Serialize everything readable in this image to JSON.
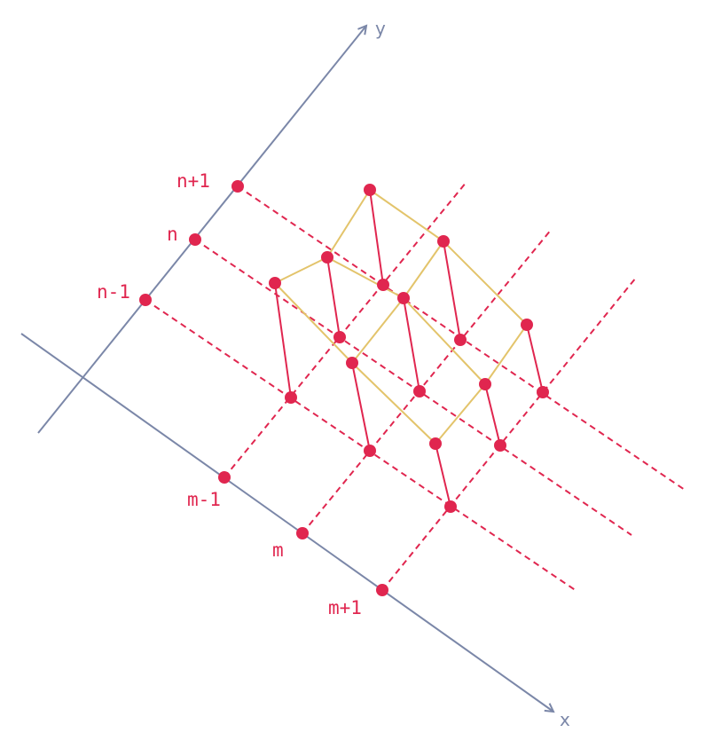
{
  "axes": {
    "x_label": "x",
    "y_label": "y"
  },
  "x_ticks": [
    "m-1",
    "m",
    "m+1"
  ],
  "y_ticks": [
    "n+1",
    "n",
    "n-1"
  ],
  "colors": {
    "axis": "#7b87a8",
    "points": "#e0264f",
    "surface": "#e3c46b"
  }
}
